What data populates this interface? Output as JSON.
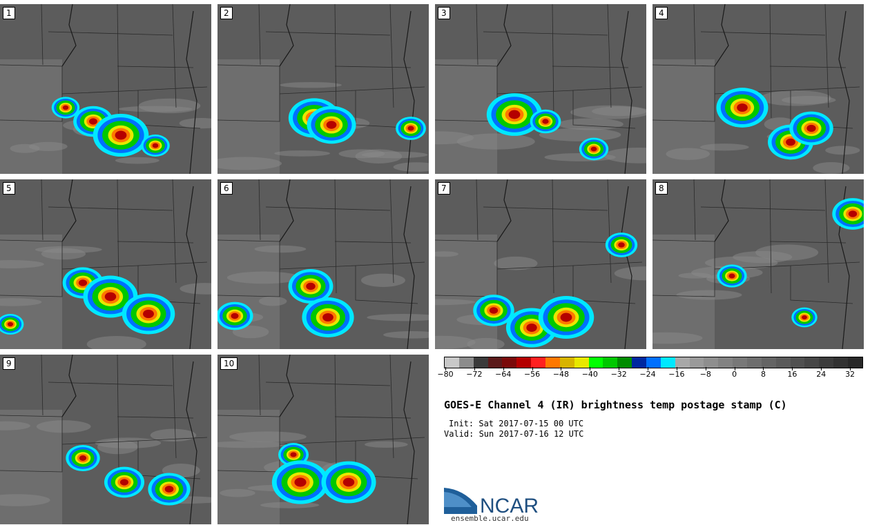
{
  "panels": [
    {
      "label": "1",
      "seed": 11
    },
    {
      "label": "2",
      "seed": 23
    },
    {
      "label": "3",
      "seed": 37
    },
    {
      "label": "4",
      "seed": 41
    },
    {
      "label": "5",
      "seed": 53
    },
    {
      "label": "6",
      "seed": 67
    },
    {
      "label": "7",
      "seed": 71
    },
    {
      "label": "8",
      "seed": 83
    },
    {
      "label": "9",
      "seed": 97
    },
    {
      "label": "10",
      "seed": 101
    }
  ],
  "colorbar": {
    "colors": [
      "#c8c8c8",
      "#8c8c8c",
      "#3a3a3a",
      "#5a1a1a",
      "#7a0a0a",
      "#b40000",
      "#ff2020",
      "#ff7800",
      "#d8b400",
      "#e8e800",
      "#00ff00",
      "#00c800",
      "#008c00",
      "#0028a0",
      "#0070ff",
      "#00e8ff",
      "#a8a8a8",
      "#9a9a9a",
      "#8e8e8e",
      "#828282",
      "#787878",
      "#6e6e6e",
      "#646464",
      "#5a5a5a",
      "#505050",
      "#464646",
      "#3c3c3c",
      "#323232",
      "#282828"
    ],
    "tick_labels": [
      "−80",
      "−72",
      "−64",
      "−56",
      "−48",
      "−40",
      "−32",
      "−24",
      "−16",
      "−8",
      "0",
      "8",
      "16",
      "24",
      "32"
    ]
  },
  "title": "GOES-E Channel 4 (IR) brightness temp postage stamp (C)",
  "init": "Init: Sat 2017-07-15 00 UTC",
  "valid": "Valid: Sun 2017-07-16 12 UTC",
  "logo": {
    "text": "NCAR",
    "url": "ensemble.ucar.edu"
  }
}
